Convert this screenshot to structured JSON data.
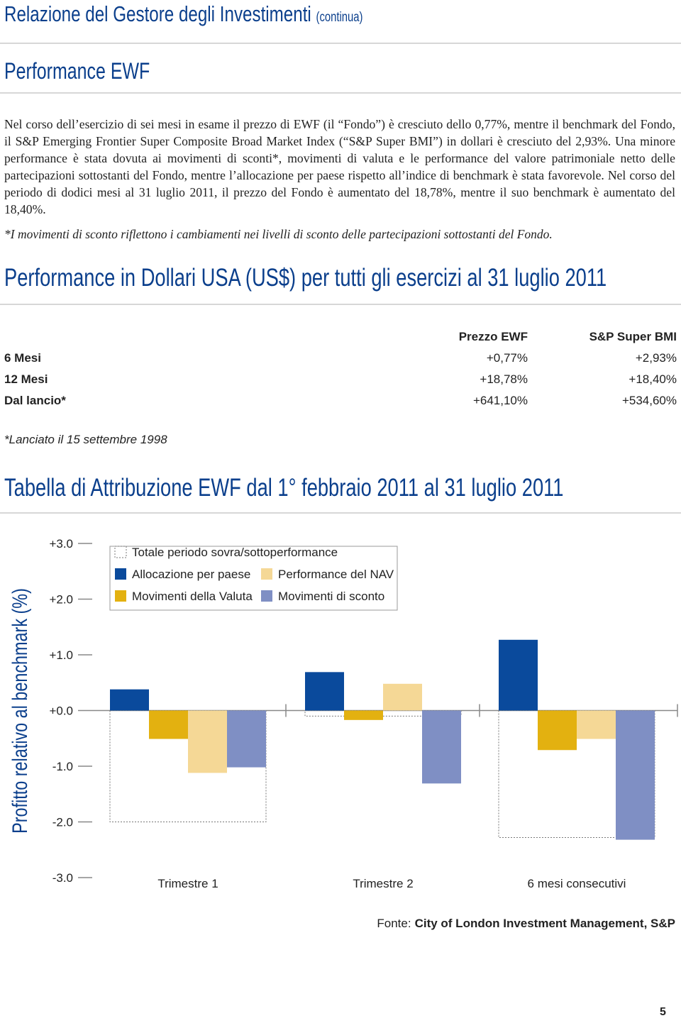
{
  "header": {
    "title": "Relazione del Gestore degli Investimenti",
    "subtitle": "(continua)"
  },
  "section": {
    "title": "Performance EWF",
    "paragraph": "Nel corso dell’esercizio di sei mesi in esame il prezzo di EWF (il “Fondo”) è cresciuto dello 0,77%, mentre il benchmark del Fondo, il S&P Emerging Frontier Super Composite Broad Market Index (“S&P Super BMI”) in dollari è cresciuto del 2,93%. Una minore performance è stata dovuta ai movimenti di sconti*, movimenti di valuta e le performance del valore patrimoniale netto delle partecipazioni sottostanti del Fondo, mentre l’allocazione per paese rispetto all’indice di benchmark è stata favorevole. Nel corso del periodo di dodici mesi al 31 luglio 2011, il prezzo del Fondo è aumentato del 18,78%, mentre il suo benchmark è aumentato del 18,40%.",
    "footnote": "*I movimenti di sconto riflettono i cambiamenti nei livelli di sconto delle partecipazioni sottostanti del Fondo."
  },
  "table": {
    "title": "Performance in Dollari USA (US$) per tutti gli esercizi al 31 luglio 2011",
    "columns": [
      "Prezzo EWF",
      "S&P Super BMI"
    ],
    "rows": [
      [
        "6 Mesi",
        "+0,77%",
        "+2,93%"
      ],
      [
        "12 Mesi",
        "+18,78%",
        "+18,40%"
      ],
      [
        "Dal lancio*",
        "+641,10%",
        "+534,60%"
      ]
    ],
    "note": "*Lanciato il 15 settembre 1998"
  },
  "chart_data": {
    "type": "bar",
    "title": "Tabella di Attribuzione EWF dal 1° febbraio 2011 al 31 luglio 2011",
    "y_label": "Profitto relativo al benchmark (%)",
    "categories": [
      "Trimestre 1",
      "Trimestre 2",
      "6 mesi consecutivi"
    ],
    "total": {
      "name": "Totale periodo sovra/sottoperformance",
      "values": [
        -2.0,
        -0.1,
        -2.28
      ]
    },
    "series": [
      {
        "name": "Allocazione per paese",
        "color": "#0a4a9c",
        "values": [
          0.38,
          0.69,
          1.27
        ]
      },
      {
        "name": "Movimenti della Valuta",
        "color": "#e3b110",
        "values": [
          -0.51,
          -0.17,
          -0.71
        ]
      },
      {
        "name": "Performance del NAV",
        "color": "#f5d896",
        "values": [
          -1.12,
          0.48,
          -0.51
        ]
      },
      {
        "name": "Movimenti di sconto",
        "color": "#7f8fc4",
        "values": [
          -1.02,
          -1.31,
          -2.32
        ]
      }
    ],
    "ylim": [
      -3,
      3
    ],
    "yticks": [
      {
        "value": 3,
        "label": "+3.0"
      },
      {
        "value": 2,
        "label": "+2.0"
      },
      {
        "value": 1,
        "label": "+1.0"
      },
      {
        "value": 0,
        "label": "+0.0"
      },
      {
        "value": -1,
        "label": "-1.0"
      },
      {
        "value": -2,
        "label": "-2.0"
      },
      {
        "value": -3,
        "label": "-3.0"
      }
    ],
    "source": {
      "label": "Fonte:",
      "text": "City of London Investment Management, S&P"
    }
  },
  "page_number": "5"
}
